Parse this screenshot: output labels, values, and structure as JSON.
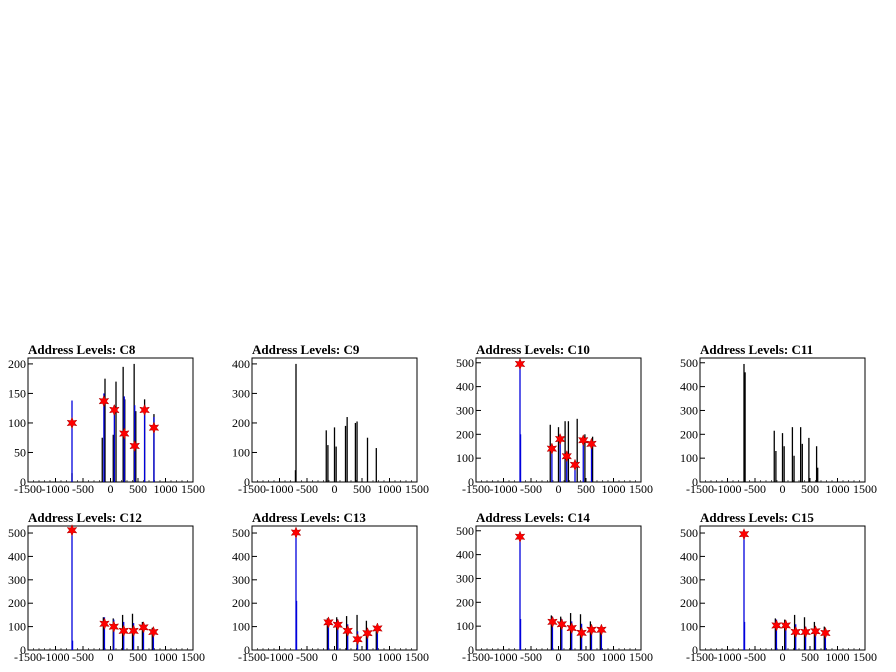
{
  "chart_data": [
    {
      "type": "bar",
      "title": "Address Levels: C8",
      "xlim": [
        -1500,
        1500
      ],
      "ylim": [
        0,
        210
      ],
      "xticks": [
        -1500,
        -1000,
        -500,
        0,
        500,
        1000,
        1500
      ],
      "xtick_labels": [
        "-1500",
        "-1000",
        "-500",
        "0",
        "500",
        "1000",
        "1500"
      ],
      "yticks": [
        0,
        50,
        100,
        150,
        200
      ],
      "ytick_labels": [
        "0",
        "50",
        "100",
        "150",
        "200"
      ],
      "series": [
        {
          "color": "#000000",
          "points": [
            [
              -700,
              15
            ],
            [
              -150,
              75
            ],
            [
              -100,
              175
            ],
            [
              50,
              80
            ],
            [
              100,
              170
            ],
            [
              230,
              195
            ],
            [
              260,
              140
            ],
            [
              430,
              200
            ],
            [
              460,
              120
            ],
            [
              620,
              140
            ],
            [
              790,
              115
            ]
          ]
        },
        {
          "color": "#0000dd",
          "points": [
            [
              -700,
              138
            ],
            [
              -120,
              150
            ],
            [
              70,
              130
            ],
            [
              250,
              145
            ],
            [
              440,
              130
            ],
            [
              620,
              130
            ],
            [
              790,
              110
            ]
          ]
        }
      ],
      "markers": [
        [
          -700,
          100
        ],
        [
          -120,
          137
        ],
        [
          70,
          122
        ],
        [
          250,
          82
        ],
        [
          440,
          61
        ],
        [
          620,
          122
        ],
        [
          790,
          92
        ]
      ],
      "marker_color": "#ff0000"
    },
    {
      "type": "bar",
      "title": "Address Levels: C9",
      "xlim": [
        -1500,
        1500
      ],
      "ylim": [
        0,
        420
      ],
      "xticks": [
        -1500,
        -1000,
        -500,
        0,
        500,
        1000,
        1500
      ],
      "xtick_labels": [
        "-1500",
        "-1000",
        "-500",
        "0",
        "500",
        "1000",
        "1500"
      ],
      "yticks": [
        0,
        100,
        200,
        300,
        400
      ],
      "ytick_labels": [
        "0",
        "100",
        "200",
        "300",
        "400"
      ],
      "series": [
        {
          "color": "#000000",
          "points": [
            [
              -700,
              400
            ],
            [
              -710,
              40
            ],
            [
              -150,
              175
            ],
            [
              -120,
              125
            ],
            [
              0,
              185
            ],
            [
              30,
              120
            ],
            [
              200,
              190
            ],
            [
              230,
              220
            ],
            [
              380,
              200
            ],
            [
              410,
              205
            ],
            [
              600,
              150
            ],
            [
              760,
              115
            ]
          ]
        }
      ],
      "markers": [],
      "marker_color": "#ff0000"
    },
    {
      "type": "bar",
      "title": "Address Levels: C10",
      "xlim": [
        -1500,
        1500
      ],
      "ylim": [
        0,
        520
      ],
      "xticks": [
        -1500,
        -1000,
        -500,
        0,
        500,
        1000,
        1500
      ],
      "xtick_labels": [
        "-1500",
        "-1000",
        "-500",
        "0",
        "500",
        "1000",
        "1500"
      ],
      "yticks": [
        0,
        100,
        200,
        300,
        400,
        500
      ],
      "ytick_labels": [
        "0",
        "100",
        "200",
        "300",
        "400",
        "500"
      ],
      "series": [
        {
          "color": "#000000",
          "points": [
            [
              -150,
              240
            ],
            [
              0,
              230
            ],
            [
              120,
              255
            ],
            [
              180,
              255
            ],
            [
              340,
              265
            ],
            [
              480,
              200
            ],
            [
              620,
              190
            ]
          ]
        },
        {
          "color": "#0000dd",
          "points": [
            [
              -700,
              500
            ],
            [
              -690,
              200
            ],
            [
              -120,
              140
            ],
            [
              30,
              190
            ],
            [
              150,
              120
            ],
            [
              300,
              80
            ],
            [
              450,
              185
            ],
            [
              600,
              165
            ]
          ]
        }
      ],
      "markers": [
        [
          -700,
          495
        ],
        [
          -120,
          140
        ],
        [
          30,
          180
        ],
        [
          150,
          108
        ],
        [
          300,
          72
        ],
        [
          450,
          175
        ],
        [
          600,
          160
        ]
      ],
      "marker_color": "#ff0000"
    },
    {
      "type": "bar",
      "title": "Address Levels: C11",
      "xlim": [
        -1500,
        1500
      ],
      "ylim": [
        0,
        520
      ],
      "xticks": [
        -1500,
        -1000,
        -500,
        0,
        500,
        1000,
        1500
      ],
      "xtick_labels": [
        "-1500",
        "-1000",
        "-500",
        "0",
        "500",
        "1000",
        "1500"
      ],
      "yticks": [
        0,
        100,
        200,
        300,
        400,
        500
      ],
      "ytick_labels": [
        "0",
        "100",
        "200",
        "300",
        "400",
        "500"
      ],
      "series": [
        {
          "color": "#000000",
          "points": [
            [
              -700,
              495
            ],
            [
              -680,
              460
            ],
            [
              -150,
              215
            ],
            [
              -120,
              130
            ],
            [
              0,
              205
            ],
            [
              30,
              150
            ],
            [
              180,
              230
            ],
            [
              210,
              110
            ],
            [
              330,
              230
            ],
            [
              360,
              160
            ],
            [
              480,
              185
            ],
            [
              620,
              150
            ],
            [
              640,
              60
            ]
          ]
        }
      ],
      "markers": [],
      "marker_color": "#ff0000"
    },
    {
      "type": "bar",
      "title": "Address Levels: C12",
      "xlim": [
        -1500,
        1500
      ],
      "ylim": [
        0,
        530
      ],
      "xticks": [
        -1500,
        -1000,
        -500,
        0,
        500,
        1000,
        1500
      ],
      "xtick_labels": [
        "-1500",
        "-1000",
        "-500",
        "0",
        "500",
        "1000",
        "1500"
      ],
      "yticks": [
        0,
        100,
        200,
        300,
        400,
        500
      ],
      "ytick_labels": [
        "0",
        "100",
        "200",
        "300",
        "400",
        "500"
      ],
      "series": [
        {
          "color": "#000000",
          "points": [
            [
              -130,
              140
            ],
            [
              50,
              135
            ],
            [
              220,
              150
            ],
            [
              400,
              155
            ],
            [
              580,
              120
            ],
            [
              760,
              95
            ]
          ]
        },
        {
          "color": "#0000dd",
          "points": [
            [
              -700,
              520
            ],
            [
              -690,
              40
            ],
            [
              -110,
              140
            ],
            [
              60,
              130
            ],
            [
              240,
              120
            ],
            [
              420,
              115
            ],
            [
              600,
              100
            ],
            [
              780,
              80
            ]
          ]
        }
      ],
      "markers": [
        [
          -700,
          512
        ],
        [
          -110,
          112
        ],
        [
          60,
          100
        ],
        [
          240,
          82
        ],
        [
          420,
          82
        ],
        [
          600,
          97
        ],
        [
          780,
          77
        ]
      ],
      "marker_color": "#ff0000"
    },
    {
      "type": "bar",
      "title": "Address Levels: C13",
      "xlim": [
        -1500,
        1500
      ],
      "ylim": [
        0,
        530
      ],
      "xticks": [
        -1500,
        -1000,
        -500,
        0,
        500,
        1000,
        1500
      ],
      "xtick_labels": [
        "-1500",
        "-1000",
        "-500",
        "0",
        "500",
        "1000",
        "1500"
      ],
      "yticks": [
        0,
        100,
        200,
        300,
        400,
        500
      ],
      "ytick_labels": [
        "0",
        "100",
        "200",
        "300",
        "400",
        "500"
      ],
      "series": [
        {
          "color": "#000000",
          "points": [
            [
              -130,
              135
            ],
            [
              40,
              140
            ],
            [
              220,
              145
            ],
            [
              410,
              150
            ],
            [
              580,
              125
            ],
            [
              760,
              100
            ]
          ]
        },
        {
          "color": "#0000dd",
          "points": [
            [
              -700,
              510
            ],
            [
              -690,
              210
            ],
            [
              -110,
              135
            ],
            [
              60,
              130
            ],
            [
              240,
              110
            ],
            [
              420,
              80
            ],
            [
              600,
              90
            ],
            [
              780,
              100
            ]
          ]
        }
      ],
      "markers": [
        [
          -700,
          502
        ],
        [
          -110,
          118
        ],
        [
          60,
          108
        ],
        [
          240,
          82
        ],
        [
          420,
          46
        ],
        [
          600,
          72
        ],
        [
          780,
          92
        ]
      ],
      "marker_color": "#ff0000"
    },
    {
      "type": "bar",
      "title": "Address Levels: C14",
      "xlim": [
        -1500,
        1500
      ],
      "ylim": [
        0,
        520
      ],
      "xticks": [
        -1500,
        -1000,
        -500,
        0,
        500,
        1000,
        1500
      ],
      "xtick_labels": [
        "-1500",
        "-1000",
        "-500",
        "0",
        "500",
        "1000",
        "1500"
      ],
      "yticks": [
        0,
        100,
        200,
        300,
        400,
        500
      ],
      "ytick_labels": [
        "0",
        "100",
        "200",
        "300",
        "400",
        "500"
      ],
      "series": [
        {
          "color": "#000000",
          "points": [
            [
              -130,
              145
            ],
            [
              40,
              140
            ],
            [
              220,
              155
            ],
            [
              400,
              150
            ],
            [
              580,
              120
            ],
            [
              760,
              95
            ]
          ]
        },
        {
          "color": "#0000dd",
          "points": [
            [
              -700,
              490
            ],
            [
              -690,
              130
            ],
            [
              -110,
              140
            ],
            [
              60,
              130
            ],
            [
              240,
              120
            ],
            [
              420,
              110
            ],
            [
              600,
              95
            ],
            [
              780,
              90
            ]
          ]
        }
      ],
      "markers": [
        [
          -700,
          475
        ],
        [
          -110,
          118
        ],
        [
          60,
          108
        ],
        [
          240,
          92
        ],
        [
          420,
          72
        ],
        [
          600,
          85
        ],
        [
          780,
          85
        ]
      ],
      "marker_color": "#ff0000"
    },
    {
      "type": "bar",
      "title": "Address Levels: C15",
      "xlim": [
        -1500,
        1500
      ],
      "ylim": [
        0,
        530
      ],
      "xticks": [
        -1500,
        -1000,
        -500,
        0,
        500,
        1000,
        1500
      ],
      "xtick_labels": [
        "-1500",
        "-1000",
        "-500",
        "0",
        "500",
        "1000",
        "1500"
      ],
      "yticks": [
        0,
        100,
        200,
        300,
        400,
        500
      ],
      "ytick_labels": [
        "0",
        "100",
        "200",
        "300",
        "400",
        "500"
      ],
      "series": [
        {
          "color": "#000000",
          "points": [
            [
              -130,
              135
            ],
            [
              40,
              130
            ],
            [
              220,
              150
            ],
            [
              400,
              140
            ],
            [
              580,
              120
            ],
            [
              760,
              100
            ]
          ]
        },
        {
          "color": "#0000dd",
          "points": [
            [
              -700,
              505
            ],
            [
              -690,
              120
            ],
            [
              -110,
              130
            ],
            [
              60,
              120
            ],
            [
              240,
              110
            ],
            [
              420,
              100
            ],
            [
              600,
              90
            ],
            [
              780,
              80
            ]
          ]
        }
      ],
      "markers": [
        [
          -700,
          495
        ],
        [
          -110,
          105
        ],
        [
          60,
          105
        ],
        [
          240,
          77
        ],
        [
          420,
          77
        ],
        [
          600,
          80
        ],
        [
          780,
          73
        ]
      ],
      "marker_color": "#ff0000"
    }
  ]
}
